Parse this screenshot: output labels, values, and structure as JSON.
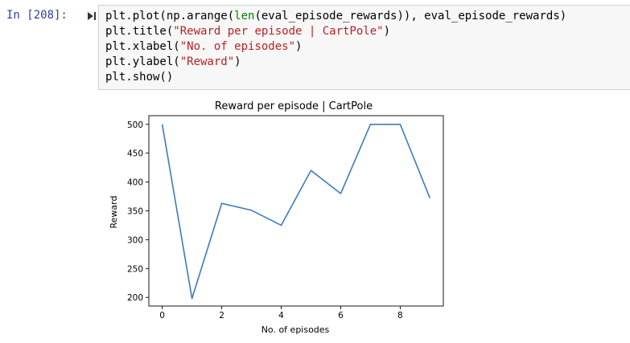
{
  "cell": {
    "prompt": "In [208]:",
    "run_icon": "step-run-icon",
    "code_lines": [
      [
        {
          "t": "plt.plot(np.arange("
        },
        {
          "t": "len",
          "c": "bi"
        },
        {
          "t": "(eval_episode_rewards)), eval_episode_rewards)"
        }
      ],
      [
        {
          "t": "plt.title("
        },
        {
          "t": "\"Reward per episode | CartPole\"",
          "c": "str"
        },
        {
          "t": ")"
        }
      ],
      [
        {
          "t": "plt.xlabel("
        },
        {
          "t": "\"No. of episodes\"",
          "c": "str"
        },
        {
          "t": ")"
        }
      ],
      [
        {
          "t": "plt.ylabel("
        },
        {
          "t": "\"Reward\"",
          "c": "str"
        },
        {
          "t": ")"
        }
      ],
      [
        {
          "t": "plt.show()"
        }
      ]
    ]
  },
  "colors": {
    "line": "#3b7bbf",
    "prompt": "#303f9f",
    "string": "#ba2121",
    "builtin": "#008000"
  },
  "chart_data": {
    "type": "line",
    "title": "Reward per episode | CartPole",
    "xlabel": "No. of episodes",
    "ylabel": "Reward",
    "x": [
      0,
      1,
      2,
      3,
      4,
      5,
      6,
      7,
      8,
      9
    ],
    "series": [
      {
        "values": [
          500,
          198,
          363,
          351,
          325,
          420,
          380,
          500,
          500,
          372
        ]
      }
    ],
    "xticks": [
      0,
      2,
      4,
      6,
      8
    ],
    "yticks": [
      200,
      250,
      300,
      350,
      400,
      450,
      500
    ],
    "xlim": [
      -0.45,
      9.45
    ],
    "ylim": [
      185,
      515
    ],
    "grid": false
  }
}
